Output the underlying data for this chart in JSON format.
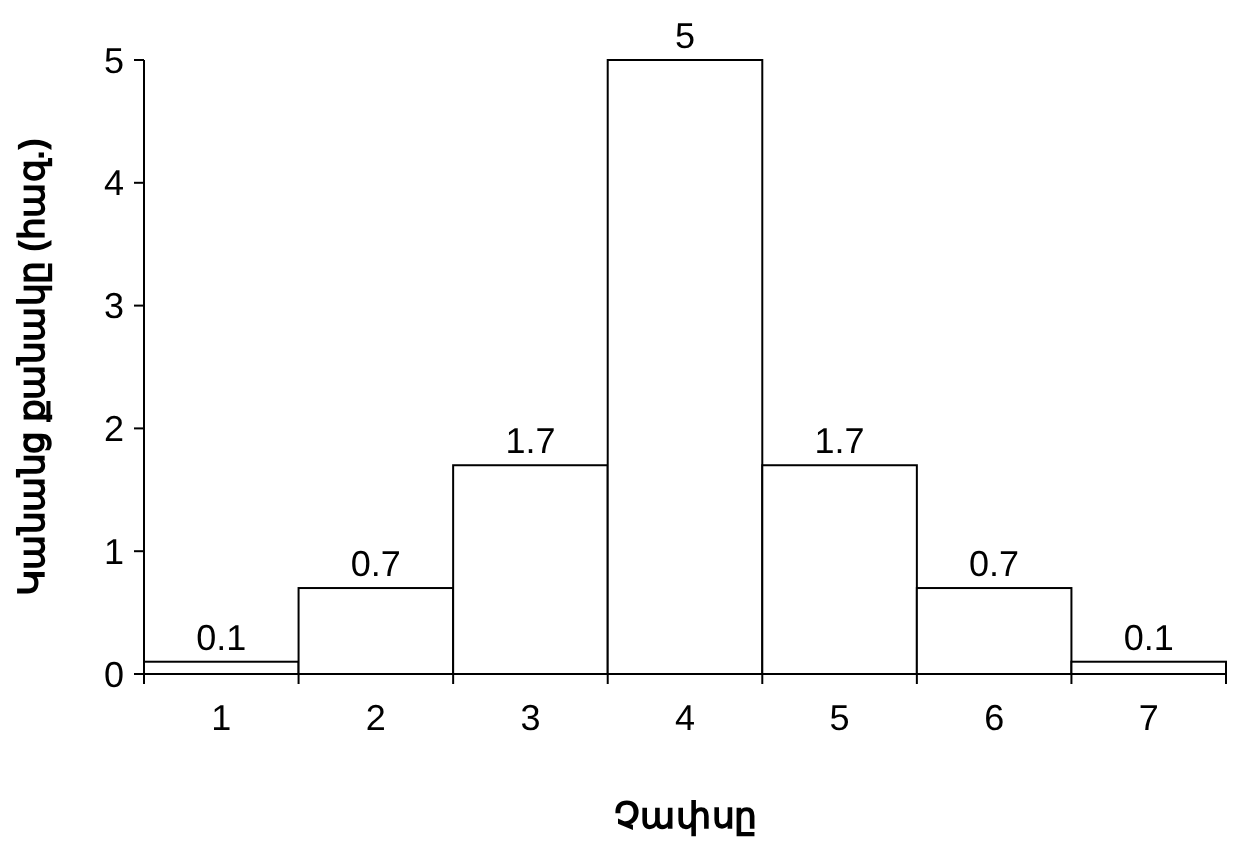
{
  "chart_data": {
    "type": "bar",
    "xlabel": "Չափսը",
    "ylabel": "Կանանց քանակը (հազ.)",
    "categories": [
      "1",
      "2",
      "3",
      "4",
      "5",
      "6",
      "7"
    ],
    "values": [
      0.1,
      0.7,
      1.7,
      5,
      1.7,
      0.7,
      0.1
    ],
    "color": "#ffffff",
    "ylim": [
      0,
      5
    ],
    "yticks": [
      0,
      1,
      2,
      3,
      4,
      5
    ],
    "data_labels": true
  }
}
